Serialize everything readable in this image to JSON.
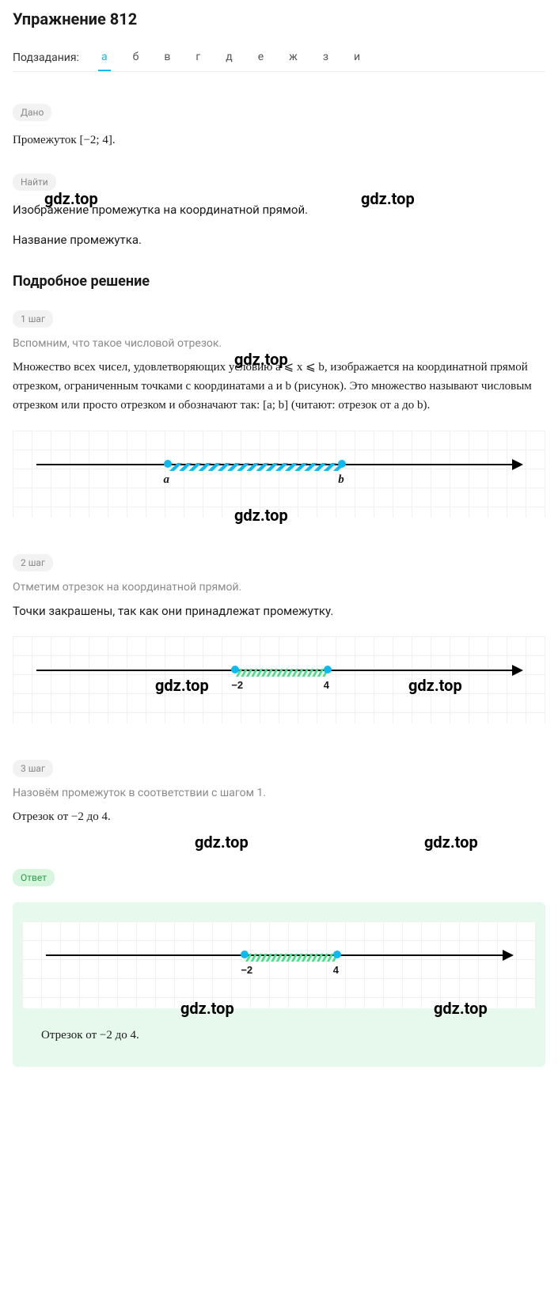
{
  "title": "Упражнение 812",
  "subtasks_label": "Подзадания:",
  "subtasks": [
    "а",
    "б",
    "в",
    "г",
    "д",
    "е",
    "ж",
    "з",
    "и"
  ],
  "active_tab_index": 0,
  "given_badge": "Дано",
  "given_text": "Промежуток [−2;  4].",
  "find_badge": "Найти",
  "find_line1": "Изображение промежутка на координатной прямой.",
  "find_line2": "Название промежутка.",
  "solution_title": "Подробное решение",
  "step1_badge": "1 шаг",
  "step1_intro": "Вспомним, что такое числовой отрезок.",
  "step1_body": "Множество всех чисел, удовлетворяющих условию a ⩽ x ⩽ b, изображается на координатной прямой отрезком, ограниченным точками с координатами a и b (рисунок). Это множество называют числовым отрезком или просто отрезком и обозначают так: [a;  b] (читают: отрезок от a до b).",
  "step2_badge": "2 шаг",
  "step2_intro": "Отметим отрезок на координатной прямой.",
  "step2_body": "Точки закрашены, так как они принадлежат промежутку.",
  "step3_badge": "3 шаг",
  "step3_intro": "Назовём промежуток в соответствии с шагом 1.",
  "step3_body": "Отрезок от −2 до 4.",
  "answer_badge": "Ответ",
  "answer_text": "Отрезок от −2 до 4.",
  "watermark": "gdz.top",
  "diagram1": {
    "left_label": "a",
    "right_label": "b",
    "seg_color": "#0bbbef",
    "seg_left_pct": 27,
    "seg_width_pct": 36,
    "dot_color": "#0bbbef"
  },
  "diagram2": {
    "left_label": "−2",
    "right_label": "4",
    "seg_color": "#47e089",
    "seg_left_pct": 41,
    "seg_width_pct": 19,
    "dot_color": "#0bbbef"
  },
  "diagram3": {
    "left_label": "−2",
    "right_label": "4",
    "seg_color": "#47e089",
    "seg_left_pct": 41,
    "seg_width_pct": 19,
    "dot_color": "#0bbbef"
  },
  "colors": {
    "tab_active": "#0bbbef",
    "badge_bg": "#f2f2f2",
    "badge_fg": "#888",
    "answer_bg": "#e6f9ec",
    "grid": "#f0f0f0"
  }
}
